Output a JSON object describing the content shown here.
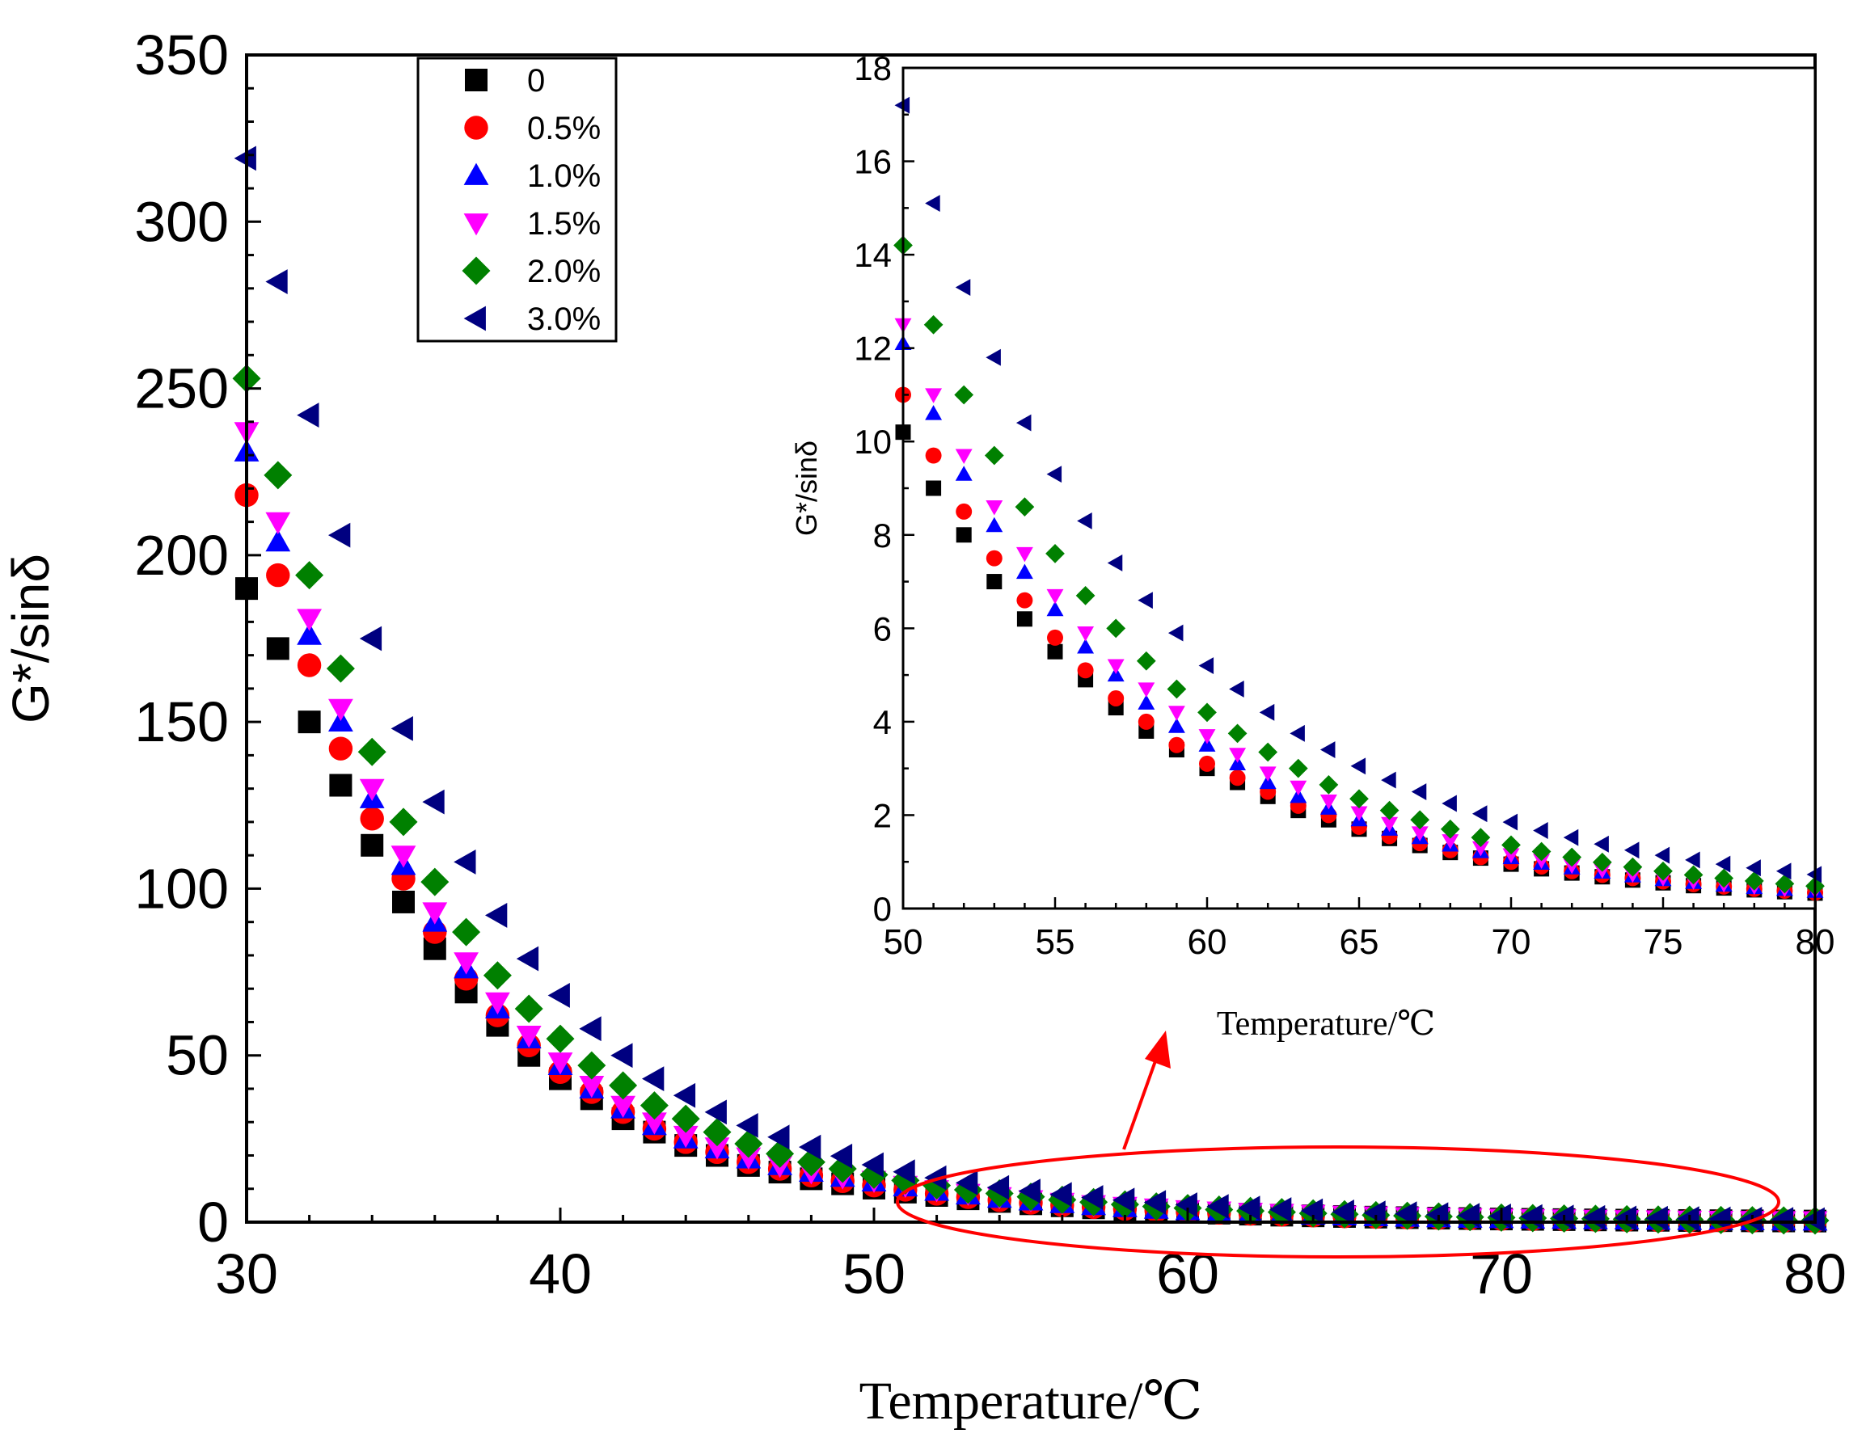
{
  "colors": {
    "s0": "#000000",
    "s05": "#ff0000",
    "s10": "#0000ff",
    "s15": "#ff00ff",
    "s20": "#008000",
    "s30": "#000080",
    "highlight": "#ff0000"
  },
  "chart_data": [
    {
      "id": "main",
      "type": "scatter",
      "title": "",
      "xlabel": "Temperature/℃",
      "ylabel": "G*/sinδ",
      "xlim": [
        30,
        80
      ],
      "ylim": [
        0,
        350
      ],
      "xticks": [
        30,
        40,
        50,
        60,
        70,
        80
      ],
      "yticks": [
        0,
        50,
        100,
        150,
        200,
        250,
        300,
        350
      ],
      "legend_position": "top-left",
      "annotation": "red ellipse around 51-80 °C region with arrow pointing to inset",
      "x": [
        30,
        31,
        32,
        33,
        34,
        35,
        36,
        37,
        38,
        39,
        40,
        41,
        42,
        43,
        44,
        45,
        46,
        47,
        48,
        49,
        50,
        51,
        52,
        53,
        54,
        55,
        56,
        57,
        58,
        59,
        60,
        61,
        62,
        63,
        64,
        65,
        66,
        67,
        68,
        69,
        70,
        71,
        72,
        73,
        74,
        75,
        76,
        77,
        78,
        79,
        80
      ],
      "series": [
        {
          "name": "0",
          "marker": "square",
          "color_key": "s0",
          "values": [
            190,
            172,
            150,
            131,
            113,
            96,
            82,
            69,
            59,
            50,
            43,
            37,
            31,
            27,
            23,
            20,
            17,
            15,
            13,
            11.5,
            10.2,
            9.0,
            8.0,
            7.0,
            6.2,
            5.5,
            4.9,
            4.3,
            3.8,
            3.4,
            3.0,
            2.7,
            2.4,
            2.1,
            1.9,
            1.7,
            1.5,
            1.35,
            1.2,
            1.08,
            0.95,
            0.85,
            0.76,
            0.68,
            0.61,
            0.55,
            0.49,
            0.44,
            0.4,
            0.36,
            0.33
          ]
        },
        {
          "name": "0.5%",
          "marker": "circle",
          "color_key": "s05",
          "values": [
            218,
            194,
            167,
            142,
            121,
            103,
            87,
            73,
            62,
            53,
            45,
            39,
            33,
            28,
            24,
            21,
            18,
            16,
            14,
            12.3,
            11,
            9.7,
            8.5,
            7.5,
            6.6,
            5.8,
            5.1,
            4.5,
            4.0,
            3.5,
            3.1,
            2.8,
            2.5,
            2.2,
            2.0,
            1.75,
            1.55,
            1.4,
            1.25,
            1.1,
            1.0,
            0.9,
            0.8,
            0.72,
            0.65,
            0.58,
            0.52,
            0.47,
            0.42,
            0.38,
            0.34
          ]
        },
        {
          "name": "1.0%",
          "marker": "triangle-up",
          "color_key": "s10",
          "values": [
            231,
            204,
            176,
            150,
            127,
            107,
            90,
            76,
            64,
            55,
            47,
            40,
            34,
            29,
            25,
            22,
            19,
            17,
            15,
            13.5,
            12.1,
            10.6,
            9.3,
            8.2,
            7.2,
            6.4,
            5.6,
            5.0,
            4.4,
            3.9,
            3.5,
            3.1,
            2.7,
            2.4,
            2.15,
            1.9,
            1.7,
            1.52,
            1.36,
            1.22,
            1.09,
            0.97,
            0.87,
            0.78,
            0.7,
            0.62,
            0.56,
            0.5,
            0.45,
            0.41,
            0.37
          ]
        },
        {
          "name": "1.5%",
          "marker": "triangle-down",
          "color_key": "s15",
          "values": [
            237,
            210,
            181,
            154,
            130,
            110,
            93,
            78,
            66,
            56,
            48,
            41,
            35,
            30,
            26,
            22.5,
            19.5,
            17,
            15,
            13.5,
            12.5,
            11,
            9.7,
            8.6,
            7.6,
            6.7,
            5.9,
            5.2,
            4.7,
            4.2,
            3.7,
            3.3,
            2.9,
            2.6,
            2.3,
            2.05,
            1.82,
            1.62,
            1.45,
            1.3,
            1.15,
            1.03,
            0.92,
            0.82,
            0.73,
            0.65,
            0.58,
            0.52,
            0.47,
            0.42,
            0.38
          ]
        },
        {
          "name": "2.0%",
          "marker": "diamond",
          "color_key": "s20",
          "values": [
            253,
            224,
            194,
            166,
            141,
            120,
            102,
            87,
            74,
            64,
            55,
            47,
            41,
            35,
            31,
            27,
            23.5,
            20.5,
            18,
            16,
            14.2,
            12.5,
            11,
            9.7,
            8.6,
            7.6,
            6.7,
            6.0,
            5.3,
            4.7,
            4.2,
            3.75,
            3.35,
            3.0,
            2.65,
            2.35,
            2.1,
            1.9,
            1.7,
            1.52,
            1.36,
            1.22,
            1.1,
            0.99,
            0.89,
            0.8,
            0.72,
            0.65,
            0.59,
            0.53,
            0.48
          ]
        },
        {
          "name": "3.0%",
          "marker": "triangle-left",
          "color_key": "s30",
          "values": [
            319,
            282,
            242,
            206,
            175,
            148,
            126,
            108,
            92,
            79,
            68,
            58,
            50,
            43,
            38,
            33,
            29,
            25.5,
            22.5,
            19.8,
            17.2,
            15.1,
            13.3,
            11.8,
            10.4,
            9.3,
            8.3,
            7.4,
            6.6,
            5.9,
            5.2,
            4.7,
            4.2,
            3.75,
            3.4,
            3.05,
            2.75,
            2.5,
            2.25,
            2.03,
            1.85,
            1.67,
            1.52,
            1.38,
            1.25,
            1.14,
            1.04,
            0.95,
            0.87,
            0.8,
            0.73
          ]
        }
      ]
    },
    {
      "id": "inset",
      "type": "scatter",
      "title": "",
      "xlabel": "Temperature/℃",
      "ylabel": "G*/sinδ",
      "xlim": [
        50,
        80
      ],
      "ylim": [
        0,
        18
      ],
      "xticks": [
        50,
        55,
        60,
        65,
        70,
        75,
        80
      ],
      "yticks": [
        0,
        2,
        4,
        6,
        8,
        10,
        12,
        14,
        16,
        18
      ],
      "note": "zoomed view of main chart data over 50-80 °C"
    }
  ],
  "legend": {
    "entries": [
      "0",
      "0.5%",
      "1.0%",
      "1.5%",
      "2.0%",
      "3.0%"
    ]
  }
}
